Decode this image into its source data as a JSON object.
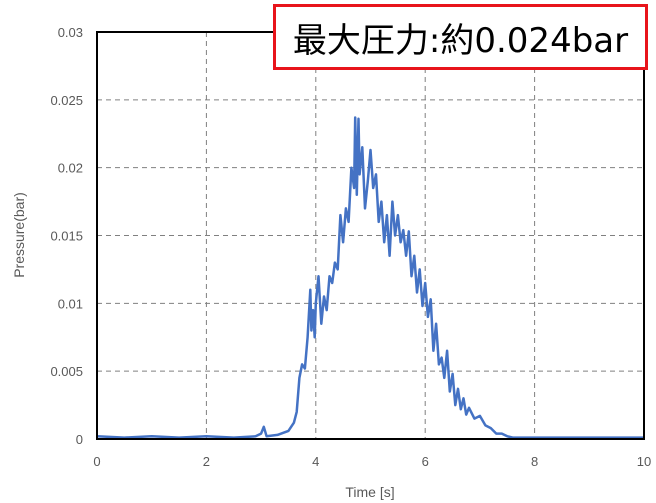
{
  "chart_data": {
    "type": "line",
    "title": "",
    "xlabel": "Time [s]",
    "ylabel": "Pressure(bar)",
    "xlim": [
      0,
      10
    ],
    "ylim": [
      0,
      0.03
    ],
    "x_ticks": [
      "0",
      "2",
      "4",
      "6",
      "8",
      "10"
    ],
    "y_ticks": [
      "0",
      "0.005",
      "0.01",
      "0.015",
      "0.02",
      "0.025",
      "0.03"
    ],
    "grid": true,
    "series": [
      {
        "color": "#4472c4",
        "x": [
          0,
          0.5,
          1.0,
          1.5,
          2.0,
          2.5,
          2.9,
          3.0,
          3.05,
          3.1,
          3.3,
          3.5,
          3.6,
          3.65,
          3.7,
          3.75,
          3.8,
          3.85,
          3.9,
          3.92,
          3.95,
          3.98,
          4.0,
          4.05,
          4.1,
          4.15,
          4.2,
          4.25,
          4.3,
          4.35,
          4.4,
          4.45,
          4.5,
          4.55,
          4.6,
          4.65,
          4.7,
          4.72,
          4.75,
          4.78,
          4.8,
          4.85,
          4.9,
          4.95,
          5.0,
          5.05,
          5.1,
          5.15,
          5.2,
          5.25,
          5.3,
          5.35,
          5.4,
          5.45,
          5.5,
          5.55,
          5.6,
          5.65,
          5.7,
          5.75,
          5.8,
          5.85,
          5.9,
          5.95,
          6.0,
          6.05,
          6.1,
          6.15,
          6.2,
          6.25,
          6.3,
          6.35,
          6.4,
          6.45,
          6.5,
          6.55,
          6.6,
          6.65,
          6.7,
          6.75,
          6.8,
          6.9,
          7.0,
          7.1,
          7.2,
          7.3,
          7.4,
          7.5,
          7.6,
          7.8,
          8.0,
          9.0,
          10.0
        ],
        "y": [
          0.0002,
          0.0001,
          0.0002,
          0.0001,
          0.0002,
          0.0001,
          0.0002,
          0.0004,
          0.0009,
          0.0002,
          0.0003,
          0.0006,
          0.0012,
          0.002,
          0.0045,
          0.0055,
          0.0052,
          0.0075,
          0.011,
          0.008,
          0.0095,
          0.0075,
          0.01,
          0.012,
          0.0085,
          0.0105,
          0.0095,
          0.012,
          0.0115,
          0.013,
          0.0125,
          0.0165,
          0.0145,
          0.017,
          0.016,
          0.02,
          0.0185,
          0.0237,
          0.018,
          0.0236,
          0.0195,
          0.0215,
          0.017,
          0.019,
          0.0213,
          0.0185,
          0.0195,
          0.016,
          0.0175,
          0.0145,
          0.0165,
          0.0135,
          0.0175,
          0.015,
          0.0165,
          0.0145,
          0.0154,
          0.0135,
          0.0153,
          0.012,
          0.0135,
          0.0108,
          0.0125,
          0.0098,
          0.0115,
          0.009,
          0.0103,
          0.0065,
          0.0085,
          0.0055,
          0.006,
          0.0045,
          0.0065,
          0.0035,
          0.0048,
          0.0025,
          0.0037,
          0.0022,
          0.003,
          0.0018,
          0.0023,
          0.0015,
          0.0017,
          0.001,
          0.0008,
          0.0004,
          0.0004,
          0.0002,
          0.0001,
          0.0001,
          0.0001,
          0.0001,
          0.0001
        ]
      }
    ]
  },
  "annotation": {
    "text": "最大圧力:約0.024bar",
    "border_color": "#e8141b"
  },
  "colors": {
    "line": "#4472c4",
    "grid": "#808080",
    "tick_text": "#595959"
  }
}
